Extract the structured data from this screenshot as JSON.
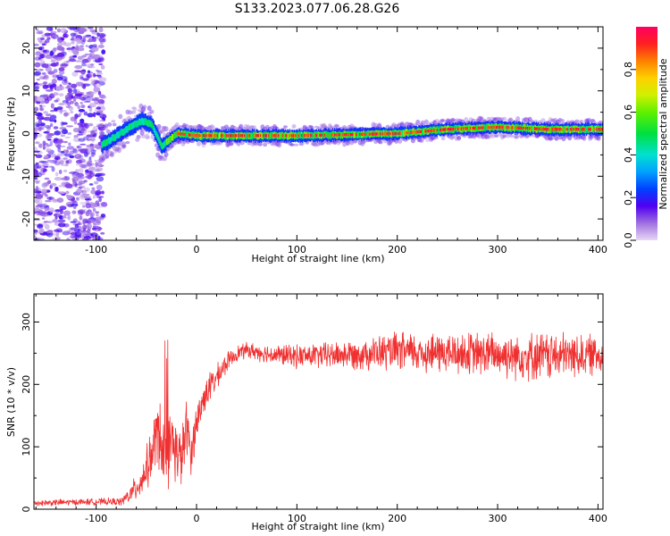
{
  "title": "S133.2023.077.06.28.G26",
  "chart_data": [
    {
      "type": "heatmap",
      "title": "S133.2023.077.06.28.G26",
      "xlabel": "Height of straight line (km)",
      "ylabel": "Frequency (Hz)",
      "xlim": [
        -162,
        405
      ],
      "ylim": [
        -25,
        25
      ],
      "xticks": [
        -100,
        0,
        100,
        200,
        300,
        400
      ],
      "yticks": [
        -20,
        -10,
        0,
        10,
        20
      ],
      "colorbar": {
        "label": "Normalized spectral amplitude",
        "range": [
          0,
          1
        ],
        "ticks": [
          "0.0",
          "0.2",
          "0.4",
          "0.6",
          "0.8"
        ],
        "tick_values": [
          0.0,
          0.2,
          0.4,
          0.6,
          0.8
        ]
      },
      "ridge": {
        "description_points": [
          {
            "x": -90,
            "y": -2
          },
          {
            "x": -70,
            "y": 1
          },
          {
            "x": -55,
            "y": 3
          },
          {
            "x": -45,
            "y": 2
          },
          {
            "x": -35,
            "y": -3
          },
          {
            "x": -20,
            "y": 0
          },
          {
            "x": 0,
            "y": -0.5
          },
          {
            "x": 100,
            "y": -0.5
          },
          {
            "x": 200,
            "y": 0
          },
          {
            "x": 250,
            "y": 1
          },
          {
            "x": 300,
            "y": 1.5
          },
          {
            "x": 350,
            "y": 1
          },
          {
            "x": 405,
            "y": 1
          }
        ]
      }
    },
    {
      "type": "line",
      "xlabel": "Height of straight line (km)",
      "ylabel": "SNR (10 * v/v)",
      "xlim": [
        -162,
        405
      ],
      "ylim": [
        0,
        345
      ],
      "xticks": [
        -100,
        0,
        100,
        200,
        300,
        400
      ],
      "yticks": [
        0,
        100,
        200,
        300
      ],
      "series": [
        {
          "color": "#f03030",
          "x": [
            -162,
            -100,
            -75,
            -65,
            -55,
            -45,
            -38,
            -30,
            -25,
            -15,
            -10,
            -5,
            0,
            10,
            20,
            30,
            40,
            50,
            75,
            100,
            150,
            200,
            250,
            300,
            350,
            405
          ],
          "values": [
            10,
            12,
            12,
            25,
            45,
            85,
            130,
            70,
            110,
            80,
            130,
            90,
            140,
            190,
            210,
            235,
            250,
            255,
            248,
            245,
            248,
            252,
            250,
            248,
            245,
            248
          ],
          "noise": [
            5,
            5,
            6,
            15,
            25,
            40,
            60,
            50,
            55,
            45,
            45,
            35,
            30,
            25,
            20,
            15,
            12,
            12,
            15,
            18,
            22,
            30,
            32,
            35,
            38,
            30
          ]
        }
      ]
    }
  ]
}
